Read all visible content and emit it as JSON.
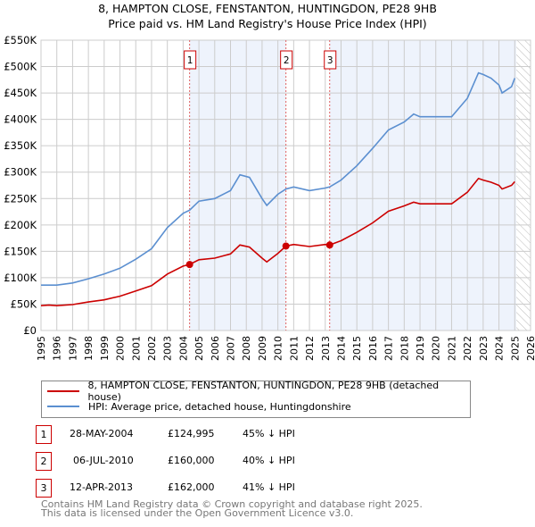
{
  "title": "8, HAMPTON CLOSE, FENSTANTON, HUNTINGDON, PE28 9HB",
  "subtitle": "Price paid vs. HM Land Registry's House Price Index (HPI)",
  "colors": {
    "property": "#cc0000",
    "hpi": "#5b8fd0",
    "shade": "#eef3fc",
    "grid": "#cccccc"
  },
  "chart_data": {
    "type": "line",
    "xlim": [
      1995,
      2026
    ],
    "ylim": [
      0,
      550000
    ],
    "yticks": [
      0,
      50000,
      100000,
      150000,
      200000,
      250000,
      300000,
      350000,
      400000,
      450000,
      500000,
      550000
    ],
    "ytick_labels": [
      "£0",
      "£50K",
      "£100K",
      "£150K",
      "£200K",
      "£250K",
      "£300K",
      "£350K",
      "£400K",
      "£450K",
      "£500K",
      "£550K"
    ],
    "xticks": [
      1995,
      1996,
      1997,
      1998,
      1999,
      2000,
      2001,
      2002,
      2003,
      2004,
      2005,
      2006,
      2007,
      2008,
      2009,
      2010,
      2011,
      2012,
      2013,
      2014,
      2015,
      2016,
      2017,
      2018,
      2019,
      2020,
      2021,
      2022,
      2023,
      2024,
      2025,
      2026
    ],
    "forecast_from": 2025.1,
    "series": [
      {
        "name": "8, HAMPTON CLOSE, FENSTANTON, HUNTINGDON, PE28 9HB (detached house)",
        "x": [
          1995,
          1995.5,
          1996,
          1997,
          1998,
          1999,
          2000,
          2001,
          2002,
          2003,
          2004,
          2004.41,
          2005,
          2006,
          2007,
          2007.6,
          2008.2,
          2009,
          2009.3,
          2010,
          2010.51,
          2011,
          2012,
          2013,
          2013.28,
          2014,
          2015,
          2016,
          2017,
          2018,
          2018.6,
          2019,
          2020,
          2021,
          2022,
          2022.7,
          2023,
          2023.5,
          2024,
          2024.2,
          2024.8,
          2025
        ],
        "y": [
          47000,
          48000,
          47000,
          49000,
          54000,
          58000,
          65000,
          75000,
          85000,
          107000,
          122000,
          124995,
          134000,
          137000,
          145000,
          162000,
          158000,
          137000,
          130000,
          146000,
          160000,
          163000,
          159000,
          163000,
          162000,
          170000,
          186000,
          204000,
          226000,
          236000,
          243000,
          240000,
          240000,
          240000,
          262000,
          288000,
          285000,
          281000,
          275000,
          268000,
          275000,
          282000
        ]
      },
      {
        "name": "HPI: Average price, detached house, Huntingdonshire",
        "x": [
          1995,
          1995.5,
          1996,
          1997,
          1998,
          1999,
          2000,
          2001,
          2002,
          2003,
          2004,
          2004.41,
          2005,
          2006,
          2007,
          2007.6,
          2008.2,
          2009,
          2009.3,
          2010,
          2010.51,
          2011,
          2012,
          2013,
          2013.28,
          2014,
          2015,
          2016,
          2017,
          2018,
          2018.6,
          2019,
          2020,
          2021,
          2022,
          2022.7,
          2023,
          2023.5,
          2024,
          2024.2,
          2024.8,
          2025
        ],
        "y": [
          86000,
          86000,
          86000,
          90000,
          98000,
          107000,
          118000,
          135000,
          155000,
          195000,
          222000,
          228000,
          245000,
          250000,
          265000,
          295000,
          290000,
          250000,
          237000,
          258000,
          268000,
          272000,
          265000,
          270000,
          272000,
          285000,
          312000,
          345000,
          380000,
          395000,
          410000,
          405000,
          405000,
          405000,
          440000,
          488000,
          485000,
          478000,
          465000,
          450000,
          462000,
          478000
        ]
      }
    ],
    "sales": [
      {
        "label": "1",
        "x": 2004.41,
        "y": 124995
      },
      {
        "label": "2",
        "x": 2010.51,
        "y": 160000
      },
      {
        "label": "3",
        "x": 2013.28,
        "y": 162000
      }
    ]
  },
  "legend": {
    "property": "8, HAMPTON CLOSE, FENSTANTON, HUNTINGDON, PE28 9HB (detached house)",
    "hpi": "HPI: Average price, detached house, Huntingdonshire"
  },
  "transactions": [
    {
      "num": "1",
      "date": "28-MAY-2004",
      "price": "£124,995",
      "diff": "45% ↓ HPI"
    },
    {
      "num": "2",
      "date": "06-JUL-2010",
      "price": "£160,000",
      "diff": "40% ↓ HPI"
    },
    {
      "num": "3",
      "date": "12-APR-2013",
      "price": "£162,000",
      "diff": "41% ↓ HPI"
    }
  ],
  "footer": {
    "line1": "Contains HM Land Registry data © Crown copyright and database right 2025.",
    "line2": "This data is licensed under the Open Government Licence v3.0."
  }
}
